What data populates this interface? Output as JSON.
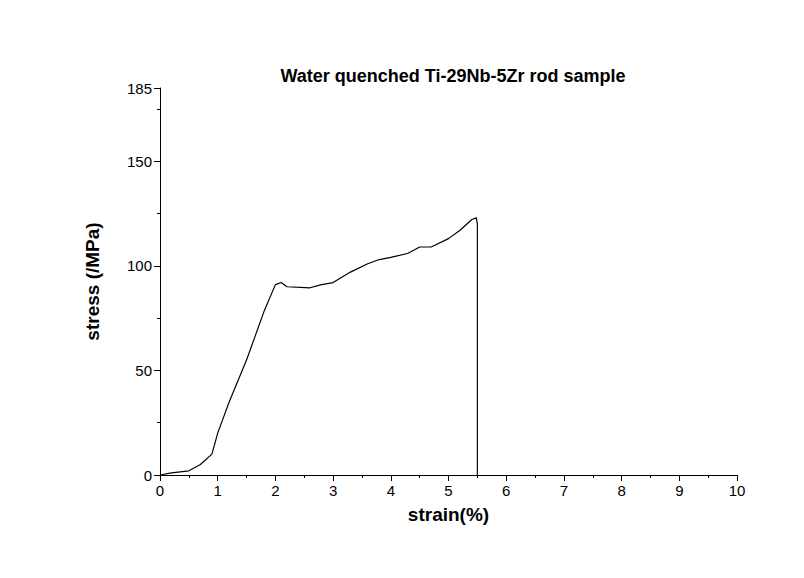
{
  "chart_data": {
    "type": "line",
    "title": "Water quenched Ti-29Nb-5Zr rod sample",
    "x_label": "strain(%)",
    "y_label": "stress (/MPa)",
    "series": [
      {
        "name": "Ti-29Nb-5Zr",
        "color": "#000000",
        "x": [
          0,
          0.2,
          0.5,
          0.7,
          0.9,
          1.0,
          1.2,
          1.5,
          1.8,
          2.0,
          2.1,
          2.2,
          2.6,
          2.8,
          3.0,
          3.3,
          3.6,
          3.8,
          4.0,
          4.3,
          4.5,
          4.7,
          5.0,
          5.2,
          5.4,
          5.48,
          5.5,
          5.5
        ],
        "values": [
          0,
          1,
          2,
          5,
          10,
          20,
          35,
          55,
          78,
          91,
          92,
          90,
          89.5,
          91,
          92,
          97,
          101,
          103,
          104,
          106,
          109,
          109,
          113,
          117,
          122,
          123,
          120,
          0
        ]
      }
    ],
    "xlim": [
      0,
      10
    ],
    "xticks": [
      0,
      1,
      2,
      3,
      4,
      5,
      6,
      7,
      8,
      9,
      10
    ],
    "ylim": [
      0,
      185
    ],
    "yticks": [
      0,
      50,
      100,
      150
    ],
    "grid": false
  }
}
